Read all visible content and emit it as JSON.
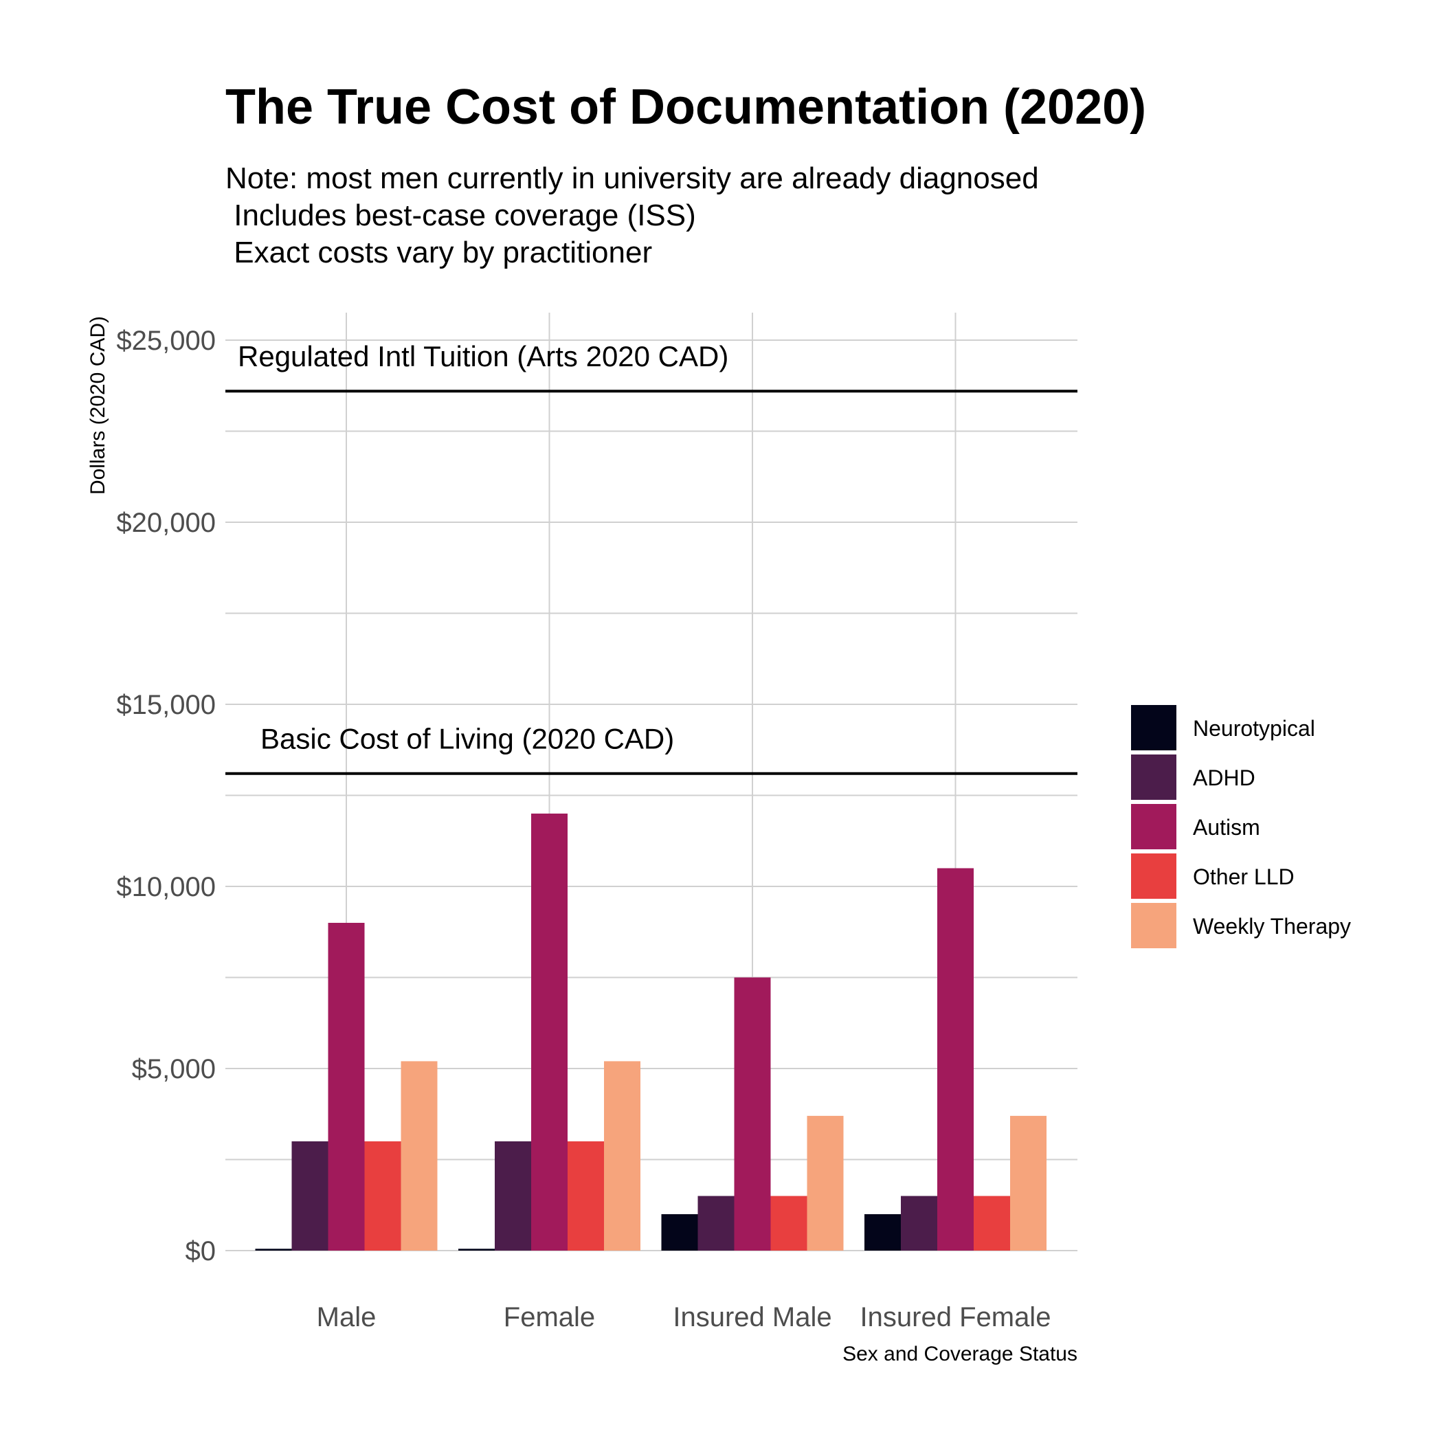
{
  "chart_data": {
    "type": "bar",
    "title": "The True Cost of Documentation (2020)",
    "subtitle_lines": [
      "Note: most men currently in university are already diagnosed",
      " Includes best-case coverage (ISS)",
      " Exact costs vary by practitioner"
    ],
    "xlabel": "Sex and Coverage Status",
    "ylabel": "Dollars (2020 CAD)",
    "ylim": [
      0,
      25000
    ],
    "y_ticks": [
      0,
      5000,
      10000,
      15000,
      20000,
      25000
    ],
    "y_tick_labels": [
      "$0",
      "$5,000",
      "$10,000",
      "$15,000",
      "$20,000",
      "$25,000"
    ],
    "categories": [
      "Male",
      "Female",
      "Insured Male",
      "Insured Female"
    ],
    "series": [
      {
        "name": "Neurotypical",
        "color": "#03051a",
        "values": [
          50,
          50,
          1000,
          1000
        ]
      },
      {
        "name": "ADHD",
        "color": "#4c1d4b",
        "values": [
          3000,
          3000,
          1500,
          1500
        ]
      },
      {
        "name": "Autism",
        "color": "#a11a5b",
        "values": [
          9000,
          12000,
          7500,
          10500
        ]
      },
      {
        "name": "Other LLD",
        "color": "#e83f3f",
        "values": [
          3000,
          3000,
          1500,
          1500
        ]
      },
      {
        "name": "Weekly Therapy",
        "color": "#f6a47c",
        "values": [
          5200,
          5200,
          3700,
          3700
        ]
      }
    ],
    "reference_lines": [
      {
        "label": "Regulated Intl Tuition (Arts 2020 CAD)",
        "value": 23600
      },
      {
        "label": "Basic Cost of Living (2020 CAD)",
        "value": 13100
      }
    ],
    "legend_position": "right",
    "grid": true
  }
}
